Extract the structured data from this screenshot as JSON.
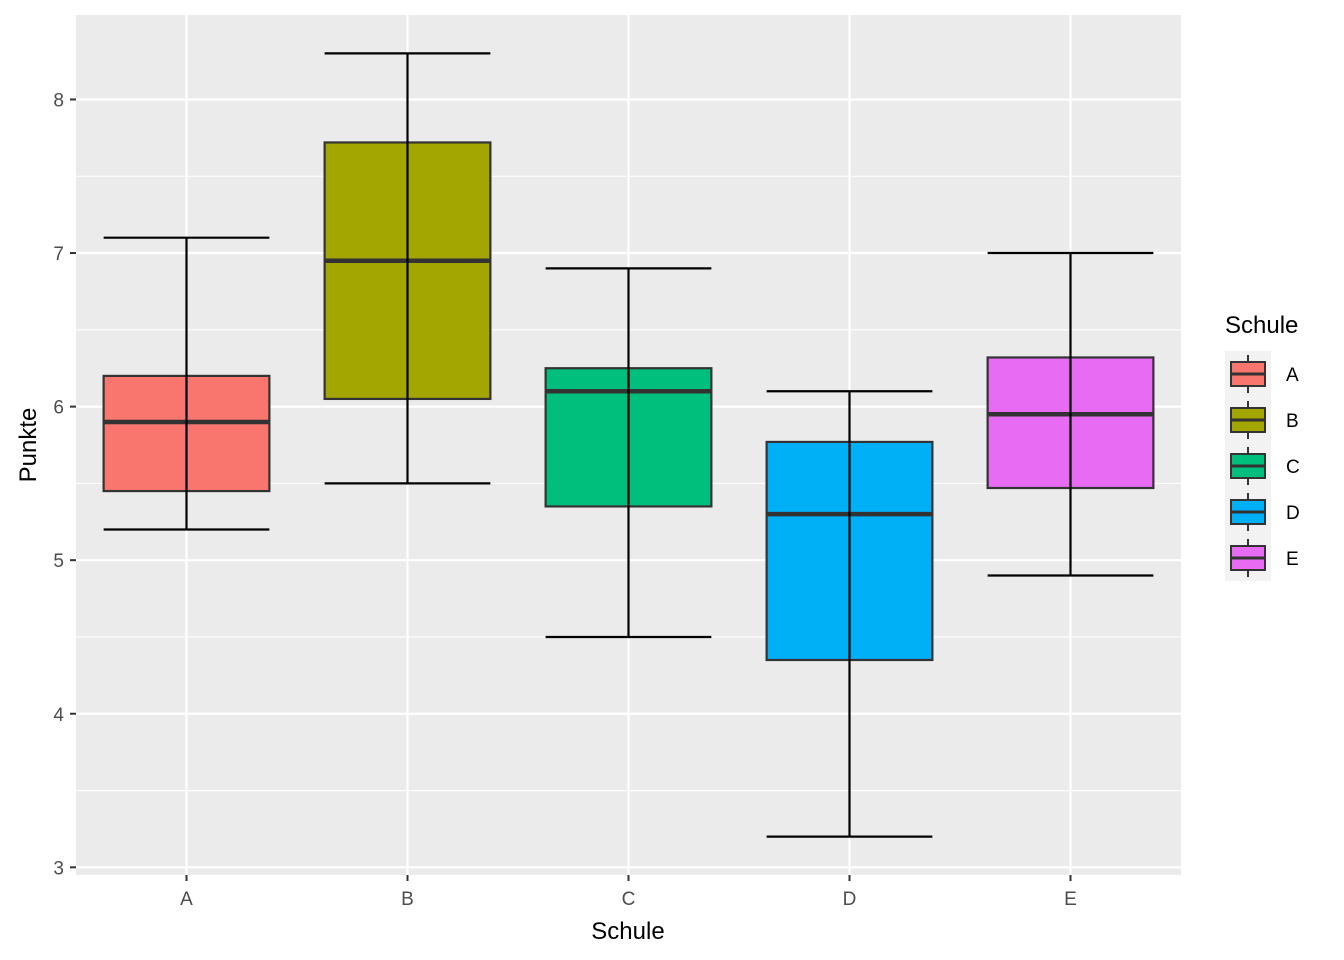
{
  "chart_data": {
    "type": "boxplot",
    "xlabel": "Schule",
    "ylabel": "Punkte",
    "ylim": [
      2.95,
      8.55
    ],
    "yticks": [
      3,
      4,
      5,
      6,
      7,
      8
    ],
    "ytick_labels": [
      "3",
      "4",
      "5",
      "6",
      "7",
      "8"
    ],
    "categories": [
      "A",
      "B",
      "C",
      "D",
      "E"
    ],
    "boxes": [
      {
        "name": "A",
        "whisker_low": 5.2,
        "q1": 5.45,
        "median": 5.9,
        "q3": 6.2,
        "whisker_high": 7.1,
        "color": "#F8766D"
      },
      {
        "name": "B",
        "whisker_low": 5.5,
        "q1": 6.05,
        "median": 6.95,
        "q3": 7.72,
        "whisker_high": 8.3,
        "color": "#A3A500"
      },
      {
        "name": "C",
        "whisker_low": 4.5,
        "q1": 5.35,
        "median": 6.1,
        "q3": 6.25,
        "whisker_high": 6.9,
        "color": "#00BF7D"
      },
      {
        "name": "D",
        "whisker_low": 3.2,
        "q1": 4.35,
        "median": 5.3,
        "q3": 5.77,
        "whisker_high": 6.1,
        "color": "#00B0F6"
      },
      {
        "name": "E",
        "whisker_low": 4.9,
        "q1": 5.47,
        "median": 5.95,
        "q3": 6.32,
        "whisker_high": 7.0,
        "color": "#E76BF3"
      }
    ],
    "legend": {
      "title": "Schule",
      "position": "right",
      "entries": [
        "A",
        "B",
        "C",
        "D",
        "E"
      ]
    },
    "grid": true,
    "panel_background": "#EBEBEB",
    "grid_color": "#FFFFFF"
  }
}
